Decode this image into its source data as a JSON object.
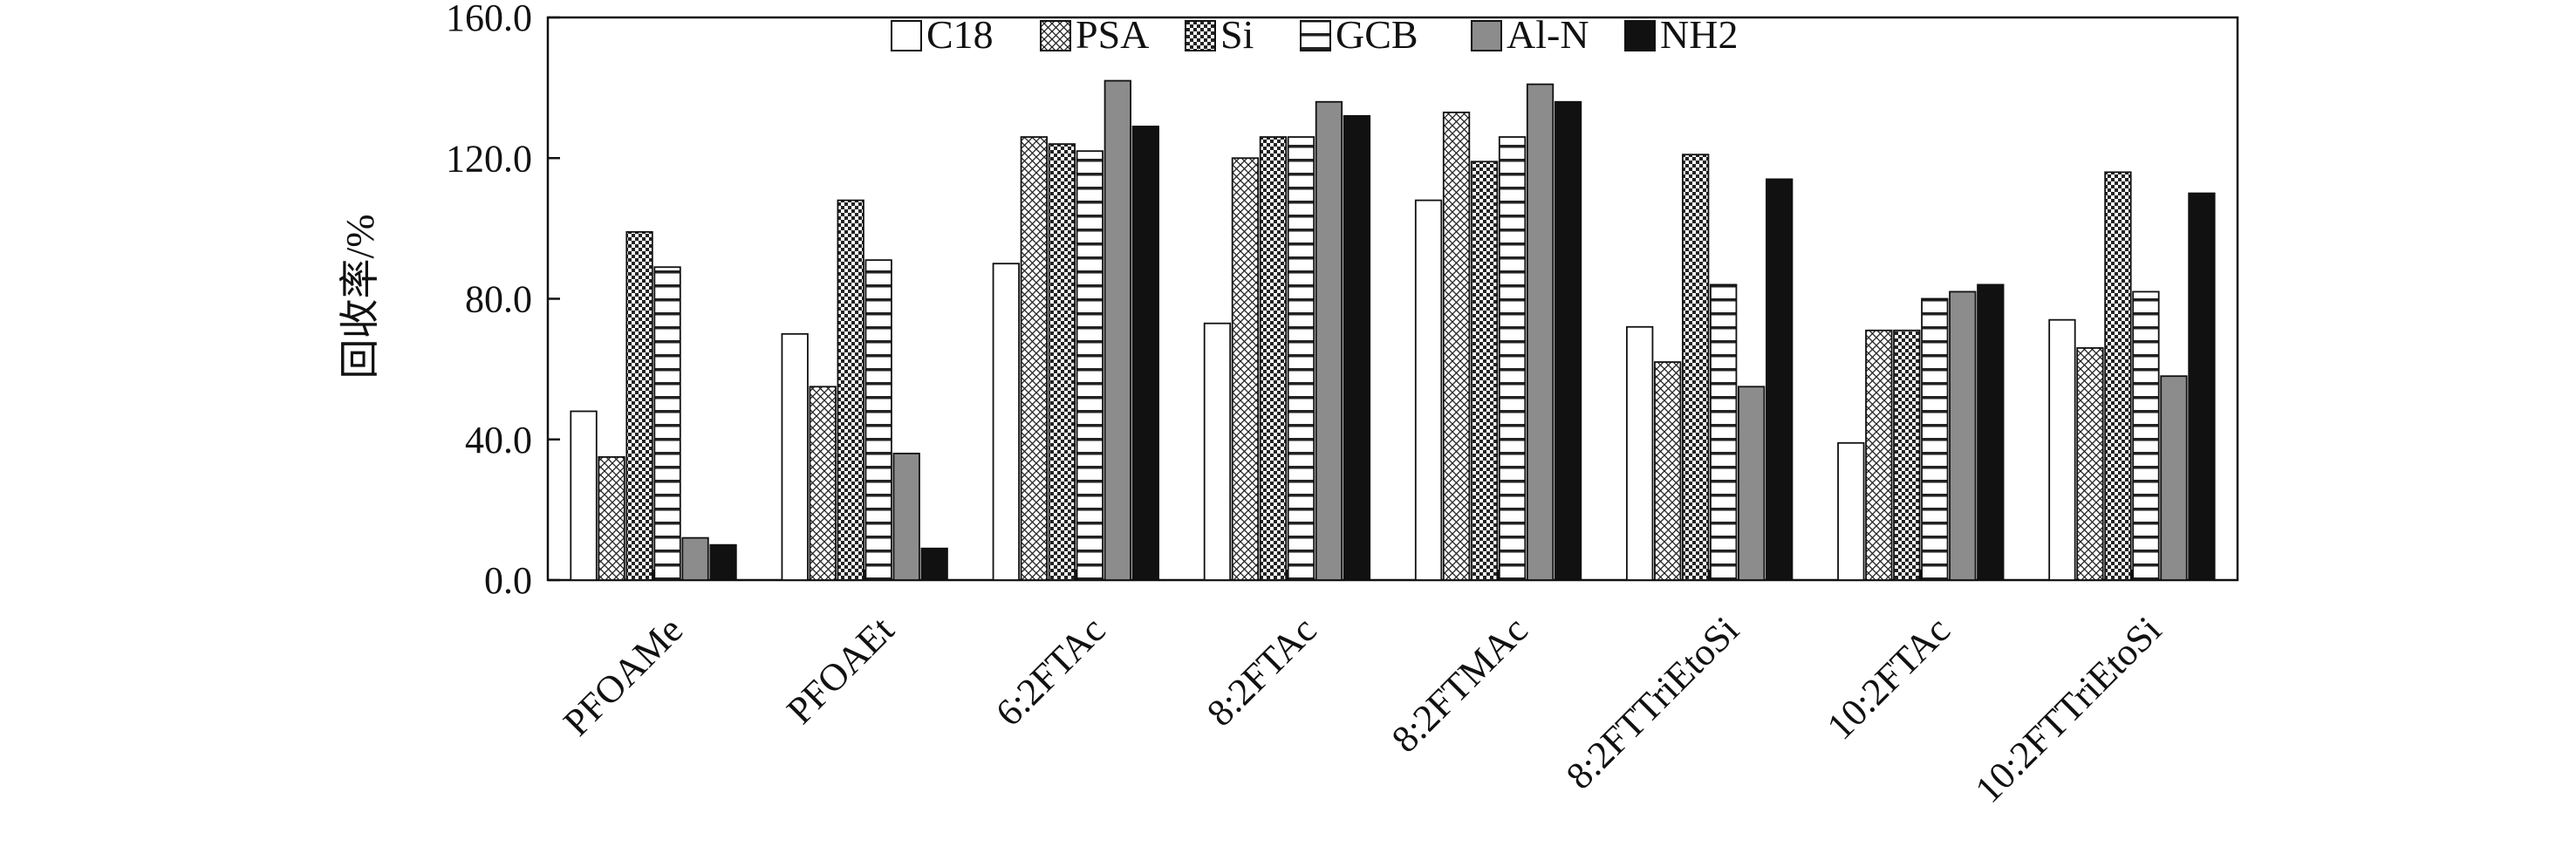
{
  "chart_data": {
    "type": "bar",
    "title": "",
    "xlabel": "",
    "ylabel": "回收率/%",
    "ylim": [
      0,
      160
    ],
    "yticks": [
      "0.0",
      "40.0",
      "80.0",
      "120.0",
      "160.0"
    ],
    "grid": false,
    "legend_position": "top-center",
    "categories": [
      "PFOAMe",
      "PFOAEt",
      "6:2FTAc",
      "8:2FTAc",
      "8:2FTMAc",
      "8:2FTTriEtoSi",
      "10:2FTAc",
      "10:2FTTriEtoSi"
    ],
    "series": [
      {
        "name": "C18",
        "pattern": "white",
        "values": [
          48,
          70,
          90,
          73,
          108,
          72,
          39,
          74
        ]
      },
      {
        "name": "PSA",
        "pattern": "crosshatch",
        "values": [
          35,
          55,
          126,
          120,
          133,
          62,
          71,
          66
        ]
      },
      {
        "name": "Si",
        "pattern": "checker",
        "values": [
          99,
          108,
          124,
          126,
          119,
          121,
          71,
          116
        ]
      },
      {
        "name": "GCB",
        "pattern": "hlines",
        "values": [
          89,
          91,
          122,
          126,
          126,
          84,
          80,
          82
        ]
      },
      {
        "name": "Al-N",
        "pattern": "gray",
        "values": [
          12,
          36,
          142,
          136,
          141,
          55,
          82,
          58
        ]
      },
      {
        "name": "NH2",
        "pattern": "black",
        "values": [
          10,
          9,
          129,
          132,
          136,
          114,
          84,
          110
        ]
      }
    ]
  }
}
